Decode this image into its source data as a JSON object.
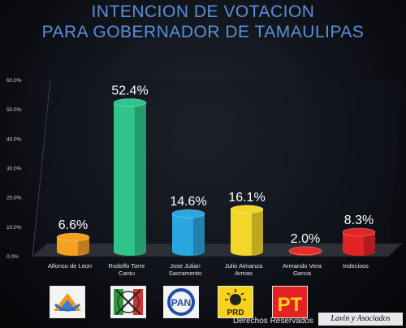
{
  "title_line1": "INTENCION DE VOTACION",
  "title_line2": "PARA GOBERNADOR DE TAMAULIPAS",
  "chart_data": {
    "type": "bar",
    "categories": [
      "Alfonso de Leon",
      "Rodolfo Torre Cantu",
      "Jose Julian Sacramento",
      "Julio Almanza Armas",
      "Armando Vera Garcia",
      "Indecisos"
    ],
    "category_lines": [
      [
        "Alfonso de Leon"
      ],
      [
        "Rodolfo Torre",
        "Cantu"
      ],
      [
        "Jose Julian",
        "Sacramento"
      ],
      [
        "Julio Almanza",
        "Armas"
      ],
      [
        "Armando Vera",
        "Garcia"
      ],
      [
        "Indecisos"
      ]
    ],
    "values": [
      6.6,
      52.4,
      14.6,
      16.1,
      2.0,
      8.3
    ],
    "value_labels": [
      "6.6%",
      "52.4%",
      "14.6%",
      "16.1%",
      "2.0%",
      "8.3%"
    ],
    "colors": [
      "#f4a020",
      "#2fc58a",
      "#2aa6e0",
      "#f2d72a",
      "#e42c2a",
      "#e22424"
    ],
    "ylim": [
      0,
      60
    ],
    "yticks": [
      "0.0%",
      "10.0%",
      "20.0%",
      "30.0%",
      "40.0%",
      "50.0%",
      "60.0%"
    ],
    "grid": false,
    "legend": "none"
  },
  "logos": [
    {
      "name": "alliance-logo-icon"
    },
    {
      "name": "pri-logo-icon"
    },
    {
      "name": "pan-logo-icon",
      "text": "PAN"
    },
    {
      "name": "prd-logo-icon",
      "text": "PRD"
    },
    {
      "name": "pt-logo-icon",
      "text": "PT"
    }
  ],
  "footer": {
    "rights": "Derechos Reservados",
    "brand": "Lavin y Asociados"
  }
}
